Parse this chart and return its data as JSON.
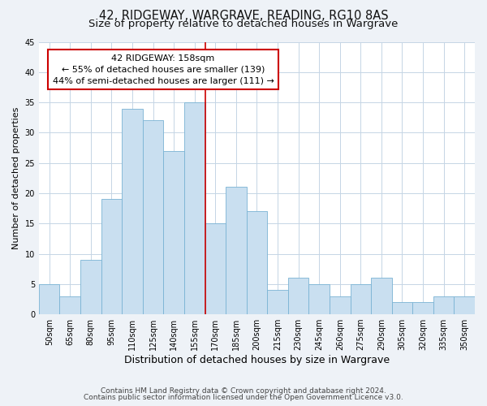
{
  "title": "42, RIDGEWAY, WARGRAVE, READING, RG10 8AS",
  "subtitle": "Size of property relative to detached houses in Wargrave",
  "xlabel": "Distribution of detached houses by size in Wargrave",
  "ylabel": "Number of detached properties",
  "bin_labels": [
    "50sqm",
    "65sqm",
    "80sqm",
    "95sqm",
    "110sqm",
    "125sqm",
    "140sqm",
    "155sqm",
    "170sqm",
    "185sqm",
    "200sqm",
    "215sqm",
    "230sqm",
    "245sqm",
    "260sqm",
    "275sqm",
    "290sqm",
    "305sqm",
    "320sqm",
    "335sqm",
    "350sqm"
  ],
  "bar_heights": [
    5,
    3,
    9,
    19,
    34,
    32,
    27,
    35,
    15,
    21,
    17,
    4,
    6,
    5,
    3,
    5,
    6,
    2,
    2,
    3,
    3
  ],
  "bar_color": "#c9dff0",
  "bar_edge_color": "#7ab3d4",
  "property_line_x": 7.5,
  "property_line_color": "#cc0000",
  "annotation_line1": "42 RIDGEWAY: 158sqm",
  "annotation_line2": "← 55% of detached houses are smaller (139)",
  "annotation_line3": "44% of semi-detached houses are larger (111) →",
  "ylim": [
    0,
    45
  ],
  "yticks": [
    0,
    5,
    10,
    15,
    20,
    25,
    30,
    35,
    40,
    45
  ],
  "footer_line1": "Contains HM Land Registry data © Crown copyright and database right 2024.",
  "footer_line2": "Contains public sector information licensed under the Open Government Licence v3.0.",
  "bg_color": "#eef2f7",
  "plot_bg_color": "#ffffff",
  "grid_color": "#c5d5e5",
  "title_fontsize": 10.5,
  "subtitle_fontsize": 9.5,
  "xlabel_fontsize": 9,
  "ylabel_fontsize": 8,
  "tick_fontsize": 7,
  "annotation_fontsize": 8,
  "footer_fontsize": 6.5
}
